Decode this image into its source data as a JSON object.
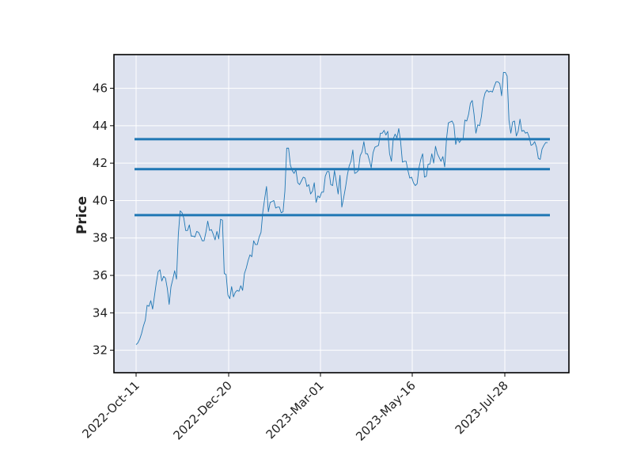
{
  "chart_data": {
    "type": "line",
    "title": "",
    "xlabel": "",
    "ylabel": "Price",
    "x_tick_labels": [
      "2022-Oct-11",
      "2022-Dec-20",
      "2023-Mar-01",
      "2023-May-16",
      "2023-Jul-28"
    ],
    "y_ticks": [
      32,
      34,
      36,
      38,
      40,
      42,
      44,
      46
    ],
    "ylim": [
      30.8,
      47.8
    ],
    "grid": true,
    "legend": "none",
    "colors": {
      "plot_bg": "#dde2ef",
      "line": "#1f77b4",
      "hlines": "#1f77b4",
      "grid": "#ffffff"
    },
    "horizontal_lines": [
      39.22,
      41.68,
      43.28
    ],
    "series": [
      {
        "values": [
          32.3,
          32.4,
          32.6,
          32.9,
          33.3,
          33.6,
          34.4,
          34.35,
          34.65,
          34.2,
          34.9,
          35.6,
          36.2,
          36.3,
          35.7,
          35.95,
          35.85,
          35.3,
          34.45,
          35.4,
          35.8,
          36.25,
          35.8,
          38.2,
          39.45,
          39.35,
          39.05,
          38.4,
          38.4,
          38.7,
          38.1,
          38.1,
          38.05,
          38.35,
          38.3,
          38.1,
          37.85,
          37.85,
          38.3,
          38.9,
          38.4,
          38.45,
          38.2,
          37.9,
          38.35,
          37.95,
          39.0,
          38.95,
          36.1,
          36.05,
          34.95,
          34.75,
          35.4,
          34.85,
          35.1,
          35.2,
          35.15,
          35.45,
          35.2,
          36.1,
          36.4,
          36.8,
          37.1,
          37.0,
          37.85,
          37.65,
          37.65,
          38.05,
          38.3,
          39.4,
          40.1,
          40.75,
          39.4,
          39.9,
          39.95,
          40.0,
          39.6,
          39.65,
          39.65,
          39.35,
          39.4,
          40.5,
          42.8,
          42.8,
          41.9,
          41.6,
          41.45,
          41.65,
          40.95,
          40.85,
          41.05,
          41.25,
          41.2,
          40.75,
          40.85,
          40.35,
          40.5,
          40.95,
          39.9,
          40.25,
          40.15,
          40.45,
          40.45,
          41.3,
          41.55,
          41.55,
          40.85,
          40.8,
          41.6,
          41.0,
          40.35,
          41.35,
          39.65,
          40.15,
          40.7,
          41.35,
          41.85,
          42.1,
          42.7,
          41.45,
          41.5,
          41.6,
          42.4,
          42.6,
          43.15,
          42.5,
          42.5,
          42.15,
          41.75,
          42.55,
          42.85,
          42.9,
          42.95,
          43.6,
          43.6,
          43.75,
          43.5,
          43.7,
          42.5,
          42.1,
          43.3,
          43.55,
          43.35,
          43.85,
          43.15,
          42.05,
          42.1,
          42.1,
          41.6,
          41.2,
          41.25,
          40.95,
          40.8,
          40.9,
          41.75,
          42.2,
          42.5,
          41.25,
          41.3,
          41.95,
          41.95,
          42.5,
          42.0,
          42.9,
          42.5,
          42.3,
          42.1,
          42.35,
          41.8,
          43.3,
          44.15,
          44.2,
          44.25,
          44.05,
          43.0,
          43.35,
          43.1,
          43.25,
          43.3,
          44.3,
          44.25,
          44.6,
          45.2,
          45.35,
          44.6,
          43.6,
          44.05,
          44.0,
          44.5,
          45.35,
          45.75,
          45.9,
          45.8,
          45.85,
          45.8,
          46.1,
          46.35,
          46.35,
          46.25,
          45.6,
          46.85,
          46.85,
          46.65,
          44.3,
          43.6,
          44.2,
          44.25,
          43.45,
          43.7,
          44.35,
          43.7,
          43.75,
          43.6,
          43.65,
          43.4,
          42.95,
          43.0,
          43.15,
          42.85,
          42.25,
          42.2,
          42.75,
          42.95,
          43.1,
          43.1
        ]
      }
    ]
  }
}
